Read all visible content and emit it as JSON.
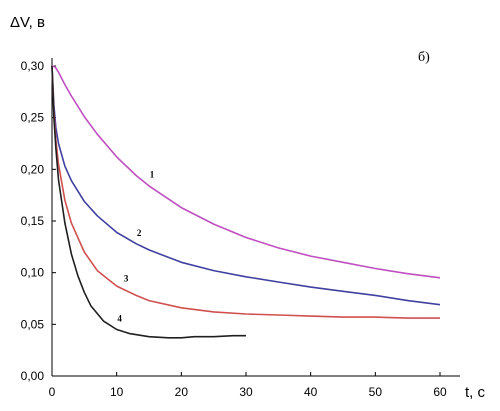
{
  "chart_data": {
    "type": "line",
    "panel_label": "б)",
    "ylabel": "ΔV, в",
    "xlabel": "t, c",
    "xlim": [
      0,
      60
    ],
    "ylim": [
      0,
      0.3
    ],
    "x_ticks": [
      0,
      10,
      20,
      30,
      40,
      50,
      60
    ],
    "y_ticks": [
      "0,00",
      "0,05",
      "0,10",
      "0,15",
      "0,20",
      "0,25",
      "0,30"
    ],
    "grid": false,
    "series": [
      {
        "name": "1",
        "color": "#c050c0",
        "x": [
          0,
          0.5,
          1,
          2,
          3,
          5,
          7,
          10,
          13,
          15,
          20,
          25,
          30,
          35,
          40,
          45,
          50,
          55,
          60
        ],
        "y": [
          0.3,
          0.299,
          0.294,
          0.282,
          0.271,
          0.251,
          0.234,
          0.212,
          0.194,
          0.184,
          0.163,
          0.147,
          0.134,
          0.124,
          0.116,
          0.11,
          0.104,
          0.099,
          0.095
        ]
      },
      {
        "name": "2",
        "color": "#4040a0",
        "x": [
          0,
          0.3,
          0.6,
          1,
          2,
          3,
          5,
          7,
          10,
          13,
          15,
          20,
          25,
          30,
          35,
          40,
          45,
          50,
          55,
          60
        ],
        "y": [
          0.3,
          0.262,
          0.24,
          0.225,
          0.203,
          0.189,
          0.169,
          0.155,
          0.139,
          0.128,
          0.122,
          0.11,
          0.102,
          0.096,
          0.091,
          0.086,
          0.082,
          0.078,
          0.073,
          0.069
        ]
      },
      {
        "name": "3",
        "color": "#d05050",
        "x": [
          0,
          0.3,
          0.6,
          1,
          2,
          3,
          5,
          7,
          10,
          13,
          15,
          20,
          25,
          30,
          35,
          40,
          45,
          50,
          55,
          60
        ],
        "y": [
          0.3,
          0.255,
          0.228,
          0.205,
          0.17,
          0.148,
          0.12,
          0.102,
          0.087,
          0.078,
          0.073,
          0.066,
          0.062,
          0.06,
          0.059,
          0.058,
          0.057,
          0.057,
          0.056,
          0.056
        ]
      },
      {
        "name": "4",
        "color": "#202020",
        "x": [
          0,
          0.3,
          0.6,
          1,
          2,
          3,
          4,
          5,
          6,
          8,
          10,
          12,
          15,
          18,
          20,
          22,
          25,
          28,
          30
        ],
        "y": [
          0.3,
          0.25,
          0.22,
          0.19,
          0.148,
          0.118,
          0.097,
          0.081,
          0.068,
          0.053,
          0.045,
          0.041,
          0.038,
          0.037,
          0.037,
          0.038,
          0.038,
          0.039,
          0.039
        ]
      }
    ]
  }
}
